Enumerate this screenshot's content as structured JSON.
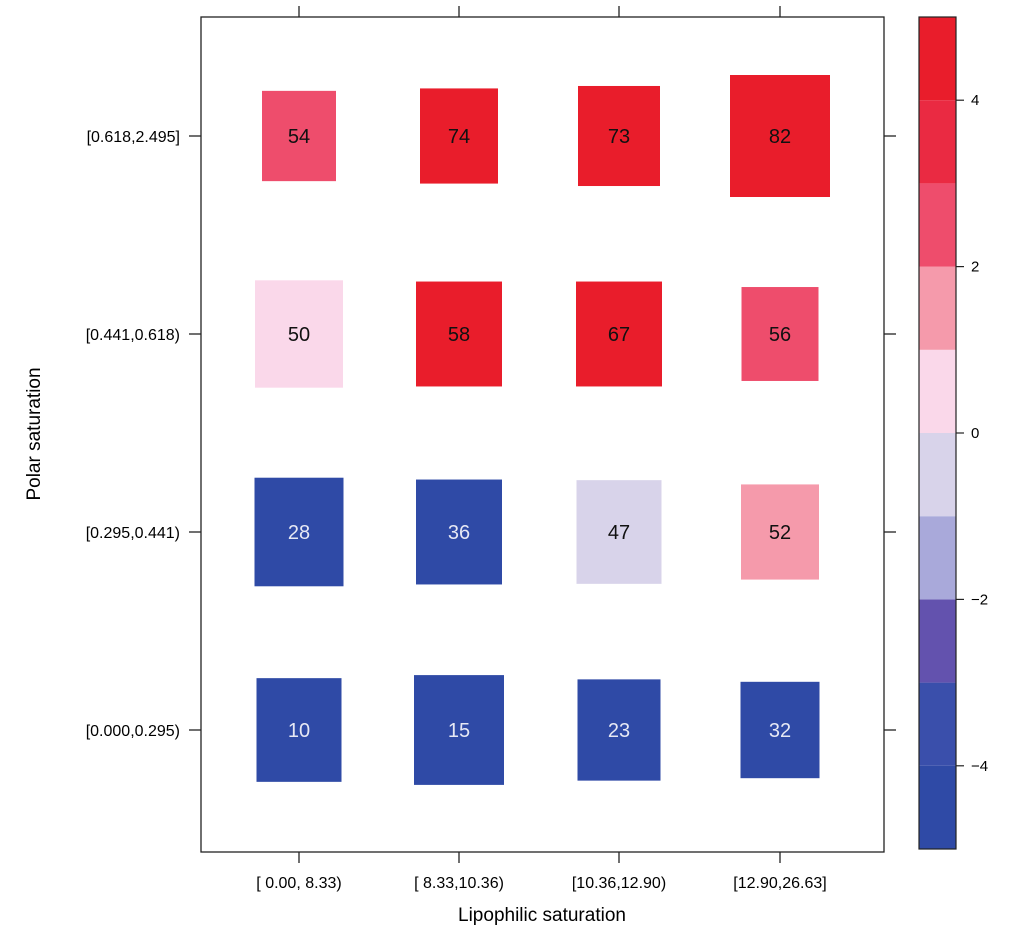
{
  "chart_data": {
    "type": "heatmap",
    "title": "",
    "xlabel": "Lipophilic saturation",
    "ylabel": "Polar saturation",
    "x_categories": [
      "[ 0.00, 8.33)",
      "[ 8.33,10.36)",
      "[10.36,12.90)",
      "[12.90,26.63]"
    ],
    "y_categories": [
      "[0.000,0.295)",
      "[0.295,0.441)",
      "[0.441,0.618)",
      "[0.618,2.495]"
    ],
    "cells": [
      {
        "x": 0,
        "y": 3,
        "label": "54",
        "color_value": 2.5,
        "size": 0.74
      },
      {
        "x": 1,
        "y": 3,
        "label": "74",
        "color_value": 4.5,
        "size": 0.78
      },
      {
        "x": 2,
        "y": 3,
        "label": "73",
        "color_value": 4.5,
        "size": 0.82
      },
      {
        "x": 3,
        "y": 3,
        "label": "82",
        "color_value": 4.5,
        "size": 1.0
      },
      {
        "x": 0,
        "y": 2,
        "label": "50",
        "color_value": 0.5,
        "size": 0.88
      },
      {
        "x": 1,
        "y": 2,
        "label": "58",
        "color_value": 4.5,
        "size": 0.86
      },
      {
        "x": 2,
        "y": 2,
        "label": "67",
        "color_value": 4.5,
        "size": 0.86
      },
      {
        "x": 3,
        "y": 2,
        "label": "56",
        "color_value": 2.5,
        "size": 0.77
      },
      {
        "x": 0,
        "y": 1,
        "label": "28",
        "color_value": -4.5,
        "size": 0.89
      },
      {
        "x": 1,
        "y": 1,
        "label": "36",
        "color_value": -4.5,
        "size": 0.86
      },
      {
        "x": 2,
        "y": 1,
        "label": "47",
        "color_value": -0.5,
        "size": 0.85
      },
      {
        "x": 3,
        "y": 1,
        "label": "52",
        "color_value": 1.5,
        "size": 0.78
      },
      {
        "x": 0,
        "y": 0,
        "label": "10",
        "color_value": -4.5,
        "size": 0.85
      },
      {
        "x": 1,
        "y": 0,
        "label": "15",
        "color_value": -4.5,
        "size": 0.9
      },
      {
        "x": 2,
        "y": 0,
        "label": "23",
        "color_value": -4.5,
        "size": 0.83
      },
      {
        "x": 3,
        "y": 0,
        "label": "32",
        "color_value": -4.5,
        "size": 0.79
      }
    ],
    "colorbar": {
      "range": [
        -5,
        5
      ],
      "bins": [
        {
          "from": -5,
          "to": -4,
          "color": "#2f4aa6"
        },
        {
          "from": -4,
          "to": -3,
          "color": "#3a4fab"
        },
        {
          "from": -3,
          "to": -2,
          "color": "#6352ae"
        },
        {
          "from": -2,
          "to": -1,
          "color": "#a9a9da"
        },
        {
          "from": -1,
          "to": 0,
          "color": "#d8d3ea"
        },
        {
          "from": 0,
          "to": 1,
          "color": "#fad8ea"
        },
        {
          "from": 1,
          "to": 2,
          "color": "#f59aab"
        },
        {
          "from": 2,
          "to": 3,
          "color": "#ee4d6c"
        },
        {
          "from": 3,
          "to": 4,
          "color": "#ea2a42"
        },
        {
          "from": 4,
          "to": 5,
          "color": "#e91d2b"
        }
      ],
      "ticks": [
        {
          "value": 4,
          "label": "4"
        },
        {
          "value": 2,
          "label": "2"
        },
        {
          "value": 0,
          "label": "0"
        },
        {
          "value": -2,
          "label": "−2"
        },
        {
          "value": -4,
          "label": "−4"
        }
      ]
    },
    "legend": "colorbar-right",
    "grid": false
  }
}
